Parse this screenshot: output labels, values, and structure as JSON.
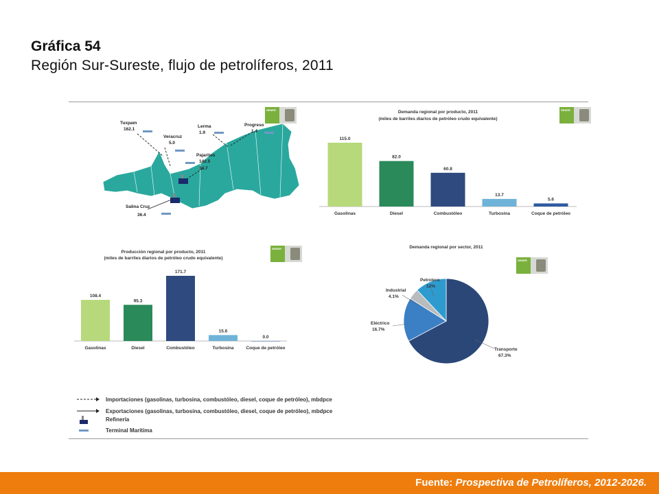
{
  "title": {
    "number": "Gráfica 54",
    "subtitle": "Región Sur-Sureste, flujo de petrolíferos, 2011"
  },
  "footer": {
    "label": "Fuente:",
    "source": "Prospectiva de Petrolíferos, 2012-2026."
  },
  "logo_text": "SENER",
  "map": {
    "places": [
      {
        "name": "Tuxpam",
        "value": "162.1"
      },
      {
        "name": "Veracruz",
        "value": "5.0"
      },
      {
        "name": "Lerma",
        "value": "1.9"
      },
      {
        "name": "Progreso",
        "value": "1.4"
      },
      {
        "name": "Pajaritos",
        "value": "142.5",
        "value2": "34.7"
      },
      {
        "name": "Salina Cruz",
        "value": "36.4"
      }
    ]
  },
  "legend": [
    {
      "icon": "dashed-arrow-icon",
      "label": "Importaciones (gasolinas, turbosina, combustóleo, diesel, coque de petróleo), mbdpce"
    },
    {
      "icon": "solid-arrow-icon",
      "label": "Exportaciones (gasolinas, turbosina, combustóleo, diesel, coque de petróleo), mbdpce"
    },
    {
      "icon": "refinery-icon",
      "label": "Refinería"
    },
    {
      "icon": "terminal-icon",
      "label": "Terminal Marítima"
    }
  ],
  "chart_data": [
    {
      "type": "bar",
      "title": "Demanda regional por producto, 2011",
      "subtitle": "(miles de barriles diarios de petróleo crudo equivalente)",
      "categories": [
        "Gasolinas",
        "Diesel",
        "Combustóleo",
        "Turbosina",
        "Coque de petróleo"
      ],
      "values": [
        115.0,
        82.0,
        60.8,
        13.7,
        5.6
      ],
      "labels": [
        "115.0",
        "82.0",
        "60.8",
        "13.7",
        "5.6"
      ],
      "colors": [
        "#b7d97c",
        "#2a8a5a",
        "#2e4a7e",
        "#6fb3d8",
        "#2e5aa0"
      ]
    },
    {
      "type": "bar",
      "title": "Producción regional por producto, 2011",
      "subtitle": "(miles de barriles diarios de petróleo crudo equivalente)",
      "categories": [
        "Gasolinas",
        "Diesel",
        "Combustóleo",
        "Turbosina",
        "Coque de petróleo"
      ],
      "values": [
        108.4,
        95.3,
        171.7,
        15.6,
        0.0
      ],
      "labels": [
        "108.4",
        "95.3",
        "171.7",
        "15.6",
        "0.0"
      ],
      "colors": [
        "#b7d97c",
        "#2a8a5a",
        "#2e4a7e",
        "#6fb3d8",
        "#2e5aa0"
      ]
    },
    {
      "type": "pie",
      "title": "Demanda regional por sector, 2011",
      "slices": [
        {
          "name": "Transporte",
          "value": 67.3,
          "label": "67.3%",
          "color": "#2b4778"
        },
        {
          "name": "Eléctrico",
          "value": 16.7,
          "label": "16.7%",
          "color": "#3b7fc4"
        },
        {
          "name": "Industrial",
          "value": 4.1,
          "label": "4.1%",
          "color": "#b9bcbe"
        },
        {
          "name": "Petrolero",
          "value": 12.0,
          "label": "12%",
          "color": "#2e9bcf"
        }
      ]
    }
  ]
}
